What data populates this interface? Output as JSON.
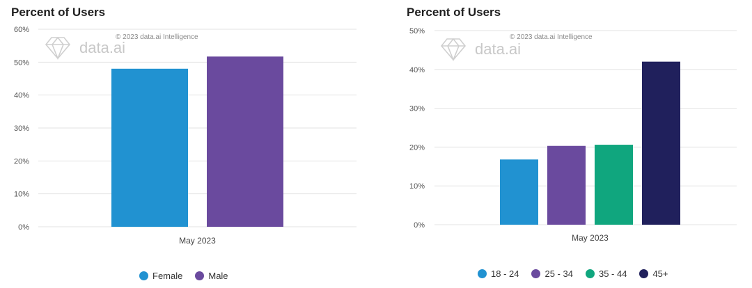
{
  "watermark": {
    "copyright": "© 2023 data.ai Intelligence",
    "logo": "data.ai",
    "logo_icon": "diamond-icon"
  },
  "chart_data": [
    {
      "type": "bar",
      "title": "Percent of Users",
      "xlabel": "May 2023",
      "ylabel": "",
      "ylim": [
        0,
        60
      ],
      "yticks": [
        0,
        10,
        20,
        30,
        40,
        50,
        60
      ],
      "tick_suffix": "%",
      "grid": true,
      "categories": [
        "May 2023"
      ],
      "series": [
        {
          "name": "Female",
          "values": [
            48
          ],
          "color": "#2192d1"
        },
        {
          "name": "Male",
          "values": [
            51.7
          ],
          "color": "#6a4a9e"
        }
      ],
      "legend_position": "bottom"
    },
    {
      "type": "bar",
      "title": "Percent of Users",
      "xlabel": "May 2023",
      "ylabel": "",
      "ylim": [
        0,
        50
      ],
      "yticks": [
        0,
        10,
        20,
        30,
        40,
        50
      ],
      "tick_suffix": "%",
      "grid": true,
      "categories": [
        "May 2023"
      ],
      "series": [
        {
          "name": "18 - 24",
          "values": [
            16.8
          ],
          "color": "#2192d1"
        },
        {
          "name": "25 - 34",
          "values": [
            20.3
          ],
          "color": "#6a4a9e"
        },
        {
          "name": "35 - 44",
          "values": [
            20.6
          ],
          "color": "#10a67e"
        },
        {
          "name": "45+",
          "values": [
            42
          ],
          "color": "#20205c"
        }
      ],
      "legend_position": "bottom"
    }
  ]
}
